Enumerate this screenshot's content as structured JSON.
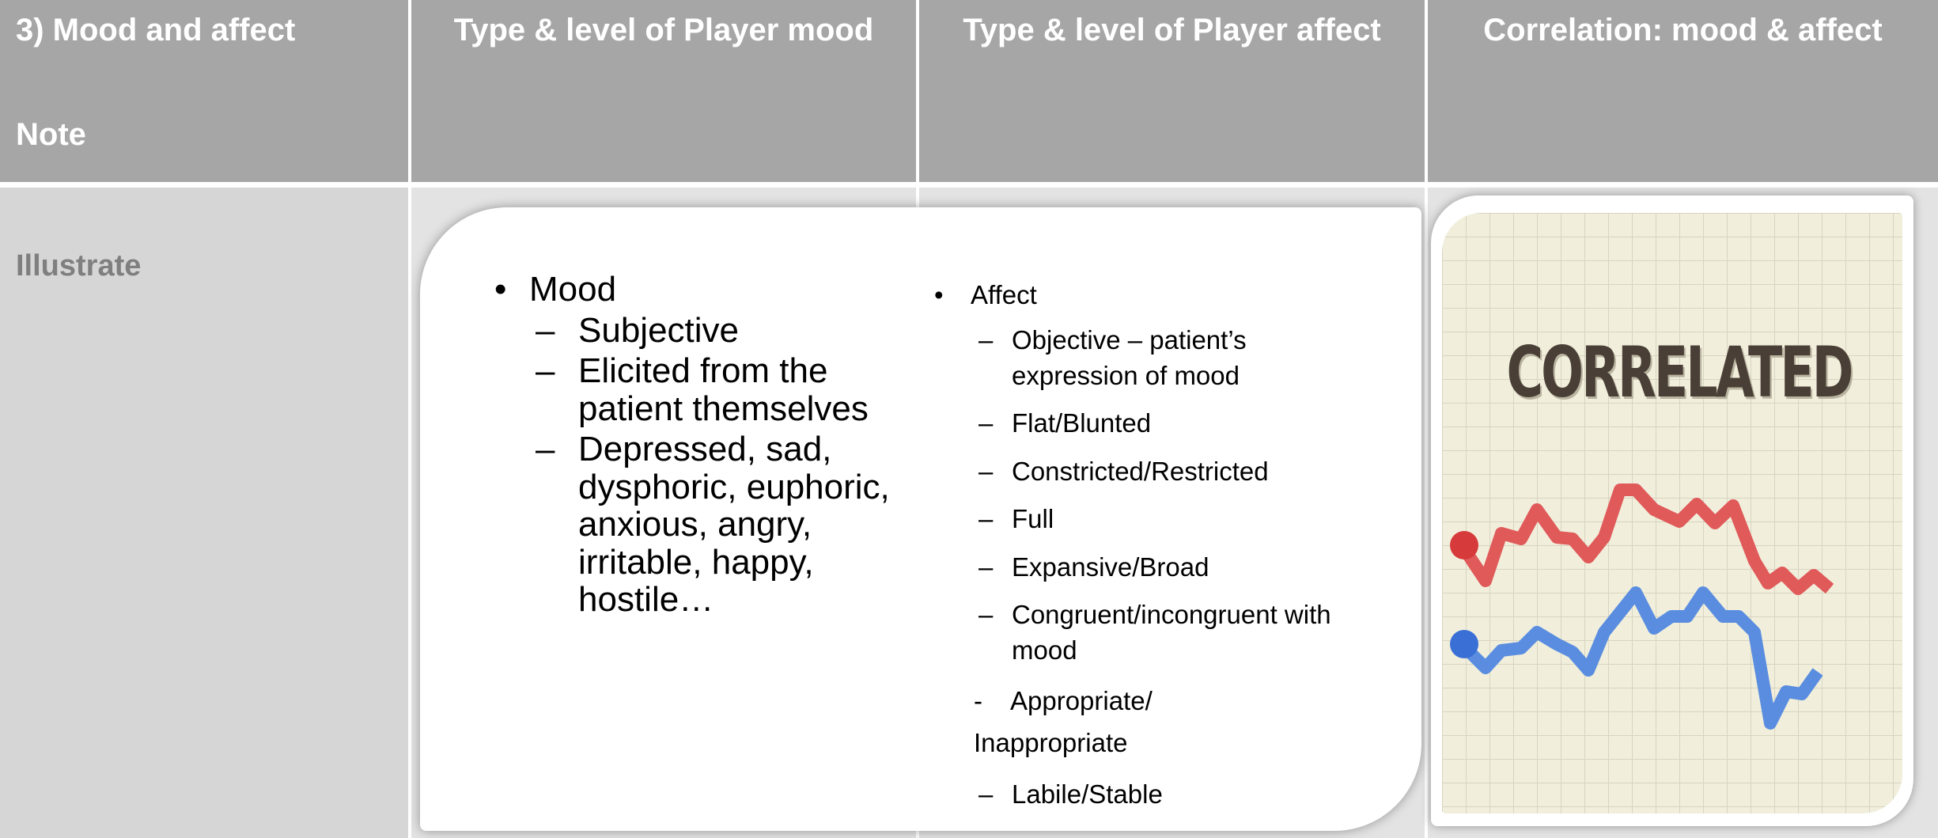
{
  "header": {
    "cells": [
      "3) Mood and affect",
      "Type & level of Player mood",
      "Type & level of Player affect",
      "Correlation: mood & affect"
    ],
    "note": "Note"
  },
  "row": {
    "label": "Illustrate"
  },
  "slide": {
    "mood": {
      "marker": "•",
      "title": "Mood",
      "items": [
        {
          "marker": "–",
          "text": "Subjective"
        },
        {
          "marker": "–",
          "text": "Elicited from the patient themselves"
        },
        {
          "marker": "–",
          "text": "Depressed, sad, dysphoric, euphoric, anxious, angry, irritable, happy, hostile…"
        }
      ]
    },
    "affect": {
      "marker": "•",
      "title": "Affect",
      "items": [
        {
          "marker": "–",
          "text": "Objective – patient’s expression of mood"
        },
        {
          "marker": "–",
          "text": "Flat/Blunted"
        },
        {
          "marker": "–",
          "text": "Constricted/Restricted"
        },
        {
          "marker": "–",
          "text": "Full"
        },
        {
          "marker": "–",
          "text": "Expansive/Broad"
        },
        {
          "marker": "–",
          "text": "Congruent/incongruent with mood"
        },
        {
          "marker": "-",
          "text": "Appropriate/ Inappropriate"
        },
        {
          "marker": "–",
          "text": "Labile/Stable"
        }
      ]
    }
  },
  "image": {
    "text": "CORRELATED"
  }
}
